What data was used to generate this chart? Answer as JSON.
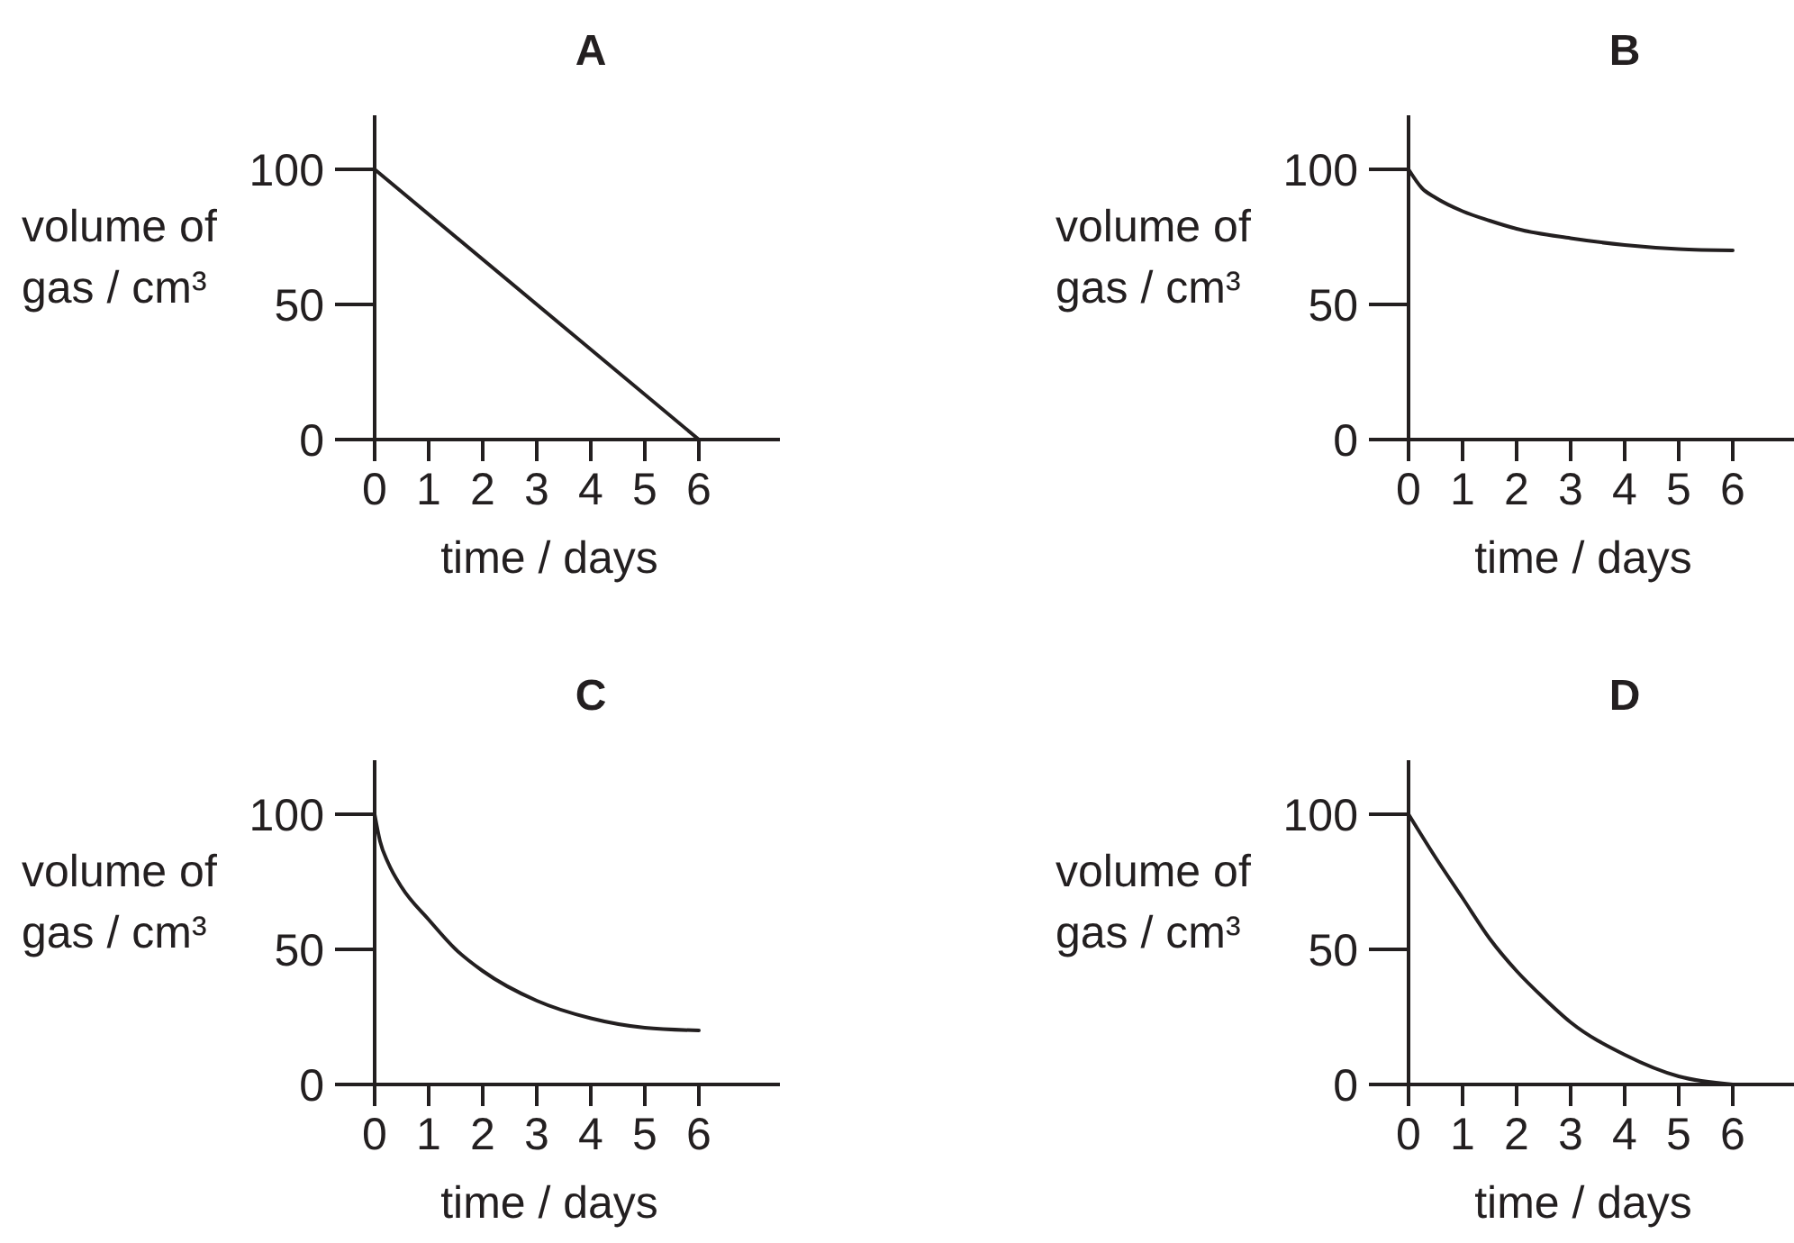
{
  "chart_data": [
    {
      "type": "line",
      "title": "A",
      "xlabel": "time / days",
      "ylabel": "volume of\ngas / cm³",
      "xlim": [
        0,
        7.5
      ],
      "ylim": [
        0,
        120
      ],
      "xticks": [
        0,
        1,
        2,
        3,
        4,
        5,
        6
      ],
      "yticks": [
        0,
        50,
        100
      ],
      "color": "#231f20",
      "x": [
        0,
        6
      ],
      "values": [
        100,
        0
      ]
    },
    {
      "type": "line",
      "title": "B",
      "xlabel": "time / days",
      "ylabel": "volume of\ngas / cm³",
      "xlim": [
        0,
        7.5
      ],
      "ylim": [
        0,
        120
      ],
      "xticks": [
        0,
        1,
        2,
        3,
        4,
        5,
        6
      ],
      "yticks": [
        0,
        50,
        100
      ],
      "color": "#231f20",
      "x": [
        0,
        0.25,
        0.5,
        1,
        1.5,
        2,
        3,
        4,
        5,
        6
      ],
      "values": [
        100,
        93,
        89.5,
        84.5,
        81,
        78,
        74.5,
        72,
        70.5,
        70
      ]
    },
    {
      "type": "line",
      "title": "C",
      "xlabel": "time / days",
      "ylabel": "volume of\ngas / cm³",
      "xlim": [
        0,
        7.5
      ],
      "ylim": [
        0,
        120
      ],
      "xticks": [
        0,
        1,
        2,
        3,
        4,
        5,
        6
      ],
      "yticks": [
        0,
        50,
        100
      ],
      "color": "#231f20",
      "x": [
        0,
        0.1,
        0.25,
        0.5,
        1,
        1.5,
        2,
        3,
        4,
        5,
        6
      ],
      "values": [
        100,
        90,
        82,
        73,
        61,
        50,
        42,
        31,
        24.5,
        21,
        20
      ]
    },
    {
      "type": "line",
      "title": "D",
      "xlabel": "time / days",
      "ylabel": "volume of\ngas / cm³",
      "xlim": [
        0,
        7.5
      ],
      "ylim": [
        0,
        120
      ],
      "xticks": [
        0,
        1,
        2,
        3,
        4,
        5,
        6
      ],
      "yticks": [
        0,
        50,
        100
      ],
      "color": "#231f20",
      "x": [
        0,
        0.5,
        1,
        1.5,
        2,
        2.5,
        3,
        4,
        5,
        6
      ],
      "values": [
        100,
        84,
        69,
        54,
        42,
        32,
        23,
        11,
        3,
        0
      ]
    }
  ]
}
